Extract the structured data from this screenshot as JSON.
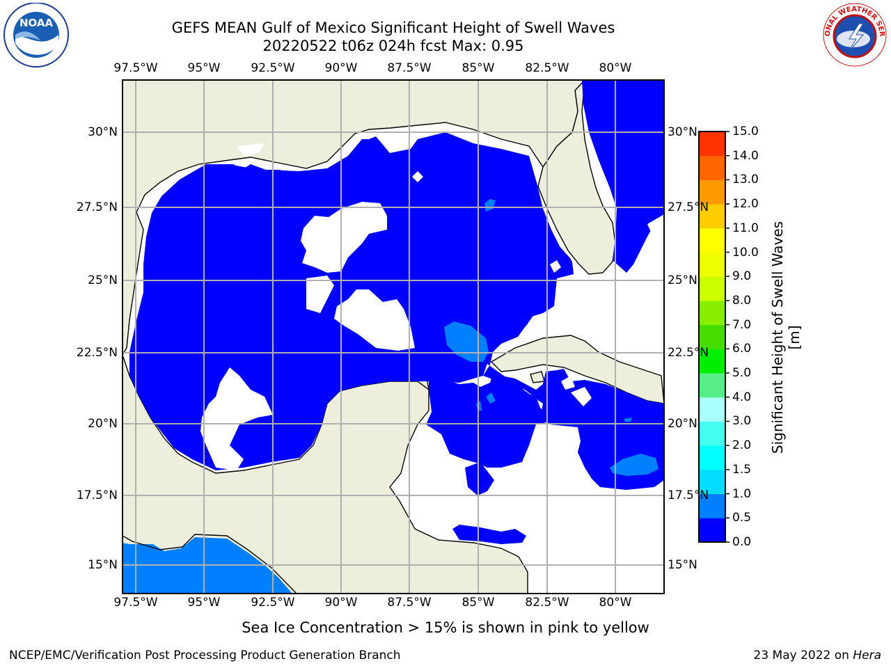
{
  "header": {
    "title_line1": "GEFS MEAN Gulf of Mexico Significant Height of Swell Waves",
    "title_line2": "20220522 t06z 024h fcst   Max: 0.95"
  },
  "map": {
    "lon_labels": [
      "97.5°W",
      "95°W",
      "92.5°W",
      "90°W",
      "87.5°W",
      "85°W",
      "82.5°W",
      "80°W"
    ],
    "lat_labels": [
      "30°N",
      "27.5°N",
      "25°N",
      "22.5°N",
      "20°N",
      "17.5°N",
      "15°N"
    ],
    "colors": {
      "land": "#eeeedd",
      "swell_0_05": "#0000ff",
      "swell_05_1": "#0080ff",
      "grid": "#b0b0b0"
    }
  },
  "colorbar": {
    "label": "Significant Height of Swell Waves [m]",
    "ticks": [
      "0.0",
      "0.5",
      "1.0",
      "1.5",
      "2.0",
      "3.0",
      "4.0",
      "5.0",
      "6.0",
      "7.0",
      "8.0",
      "9.0",
      "10.0",
      "11.0",
      "12.0",
      "13.0",
      "14.0",
      "15.0"
    ],
    "colors": [
      "#0000ff",
      "#0080ff",
      "#00ddff",
      "#00ffff",
      "#44ffee",
      "#aaffff",
      "#55ee88",
      "#00ee00",
      "#44dd00",
      "#88ee00",
      "#ccff00",
      "#eeff00",
      "#ffff00",
      "#ffcc00",
      "#ff9900",
      "#ff6600",
      "#ff3300",
      "#ff0000"
    ]
  },
  "notes": {
    "ice": "Sea Ice Concentration > 15% is shown in pink to yellow"
  },
  "footer": {
    "left": "NCEP/EMC/Verification Post Processing Product Generation Branch",
    "date": "23 May 2022 on ",
    "machine": "Hera"
  },
  "logos": {
    "noaa_text": "NOAA",
    "nws_text": "NATIONAL WEATHER SERVICE"
  }
}
